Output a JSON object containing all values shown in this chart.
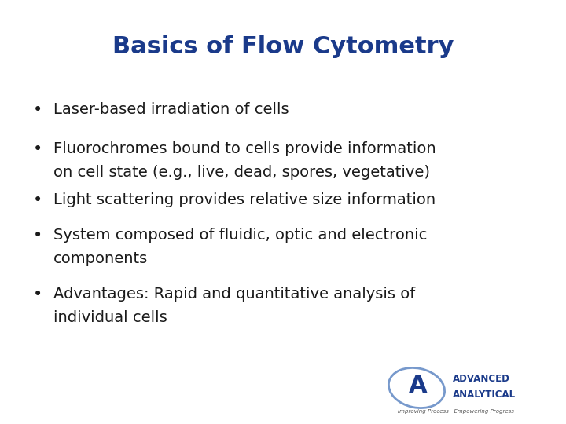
{
  "title": "Basics of Flow Cytometry",
  "title_color": "#1a3a8a",
  "title_fontsize": 22,
  "background_color": "#ffffff",
  "bullet_color": "#1a1a1a",
  "bullet_fontsize": 14,
  "bullets": [
    [
      "Laser-based irradiation of cells"
    ],
    [
      "Fluorochromes bound to cells provide information",
      "on cell state (e.g., live, dead, spores, vegetative)"
    ],
    [
      "Light scattering provides relative size information"
    ],
    [
      "System composed of fluidic, optic and electronic",
      "components"
    ],
    [
      "Advantages: Rapid and quantitative analysis of",
      "individual cells"
    ]
  ],
  "logo_text1": "ADVANCED",
  "logo_text2": "ANALYTICAL",
  "logo_subtext": "Improving Process · Empowering Progress",
  "logo_color": "#1a3a8a"
}
